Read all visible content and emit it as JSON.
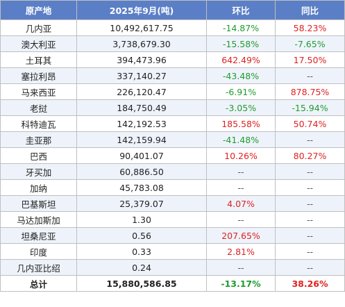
{
  "header": {
    "origin": "原产地",
    "amount": "2025年9月(吨)",
    "mom": "环比",
    "yoy": "同比"
  },
  "rows": [
    {
      "origin": "几内亚",
      "amount": "10,492,617.75",
      "mom": "-14.87%",
      "yoy": "58.23%"
    },
    {
      "origin": "澳大利亚",
      "amount": "3,738,679.30",
      "mom": "-15.58%",
      "yoy": "-7.65%"
    },
    {
      "origin": "土耳其",
      "amount": "394,473.96",
      "mom": "642.49%",
      "yoy": "17.50%"
    },
    {
      "origin": "塞拉利昂",
      "amount": "337,140.27",
      "mom": "-43.48%",
      "yoy": "--"
    },
    {
      "origin": "马来西亚",
      "amount": "226,120.47",
      "mom": "-6.91%",
      "yoy": "878.75%"
    },
    {
      "origin": "老挝",
      "amount": "184,750.49",
      "mom": "-3.05%",
      "yoy": "-15.94%"
    },
    {
      "origin": "科特迪瓦",
      "amount": "142,192.53",
      "mom": "185.58%",
      "yoy": "50.74%"
    },
    {
      "origin": "圭亚那",
      "amount": "142,159.94",
      "mom": "-41.48%",
      "yoy": "--"
    },
    {
      "origin": "巴西",
      "amount": "90,401.07",
      "mom": "10.26%",
      "yoy": "80.27%"
    },
    {
      "origin": "牙买加",
      "amount": "60,886.50",
      "mom": "--",
      "yoy": "--"
    },
    {
      "origin": "加纳",
      "amount": "45,783.08",
      "mom": "--",
      "yoy": "--"
    },
    {
      "origin": "巴基斯坦",
      "amount": "25,379.07",
      "mom": "4.07%",
      "yoy": "--"
    },
    {
      "origin": "马达加斯加",
      "amount": "1.30",
      "mom": "--",
      "yoy": "--"
    },
    {
      "origin": "坦桑尼亚",
      "amount": "0.56",
      "mom": "207.65%",
      "yoy": "--"
    },
    {
      "origin": "印度",
      "amount": "0.33",
      "mom": "2.81%",
      "yoy": "--"
    },
    {
      "origin": "几内亚比绍",
      "amount": "0.24",
      "mom": "--",
      "yoy": "--"
    }
  ],
  "total": {
    "origin": "总计",
    "amount": "15,880,586.85",
    "mom": "-13.17%",
    "yoy": "38.26%"
  },
  "colors": {
    "header_bg": "#5b7fc6",
    "stripe_bg": "#eef3fb",
    "negative": "#1f9c2d",
    "positive": "#e02020"
  }
}
